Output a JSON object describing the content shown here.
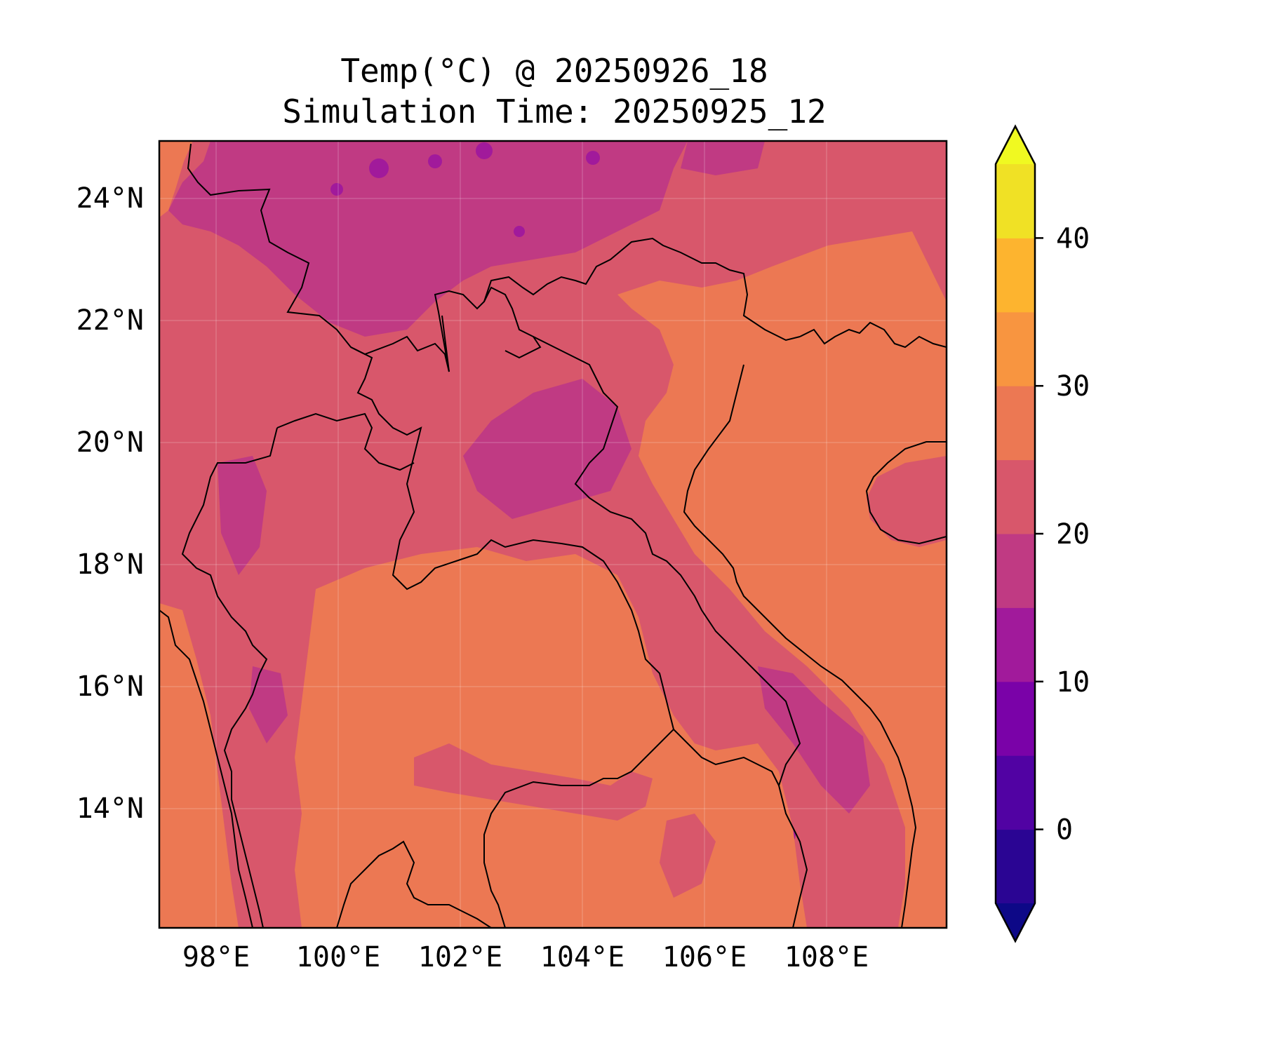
{
  "title": {
    "line1": "Temp(°C) @ 20250926_18",
    "line2": "Simulation Time: 20250925_12"
  },
  "map": {
    "lon_range": [
      97.1,
      110.0
    ],
    "lat_range": [
      12.1,
      25.0
    ],
    "lon_ticks": [
      "98°E",
      "100°E",
      "102°E",
      "104°E",
      "106°E",
      "108°E"
    ],
    "lat_ticks": [
      "24°N",
      "22°N",
      "20°N",
      "18°N",
      "16°N",
      "14°N"
    ],
    "gridlines": true,
    "coastlines": true,
    "borders": true
  },
  "colorbar": {
    "levels": [
      -5,
      0,
      5,
      10,
      15,
      20,
      25,
      30,
      35,
      40,
      45
    ],
    "extend": "both",
    "tick_labels": [
      "0",
      "10",
      "20",
      "30",
      "40"
    ],
    "colors": {
      "under": "#0d0887",
      "bins": [
        "#2a0593",
        "#5102a3",
        "#7a02a8",
        "#a11a9b",
        "#c03a83",
        "#d8576b",
        "#ec7853",
        "#f89540",
        "#fdb42f",
        "#f0e125"
      ],
      "over": "#f0f921"
    },
    "cmap": "plasma"
  },
  "colors": {
    "background_field": "#d8576b",
    "cool_field": "#c03a83",
    "cold_spots": "#a11a9b",
    "warm_field": "#ec7853",
    "border_line": "#000000"
  }
}
